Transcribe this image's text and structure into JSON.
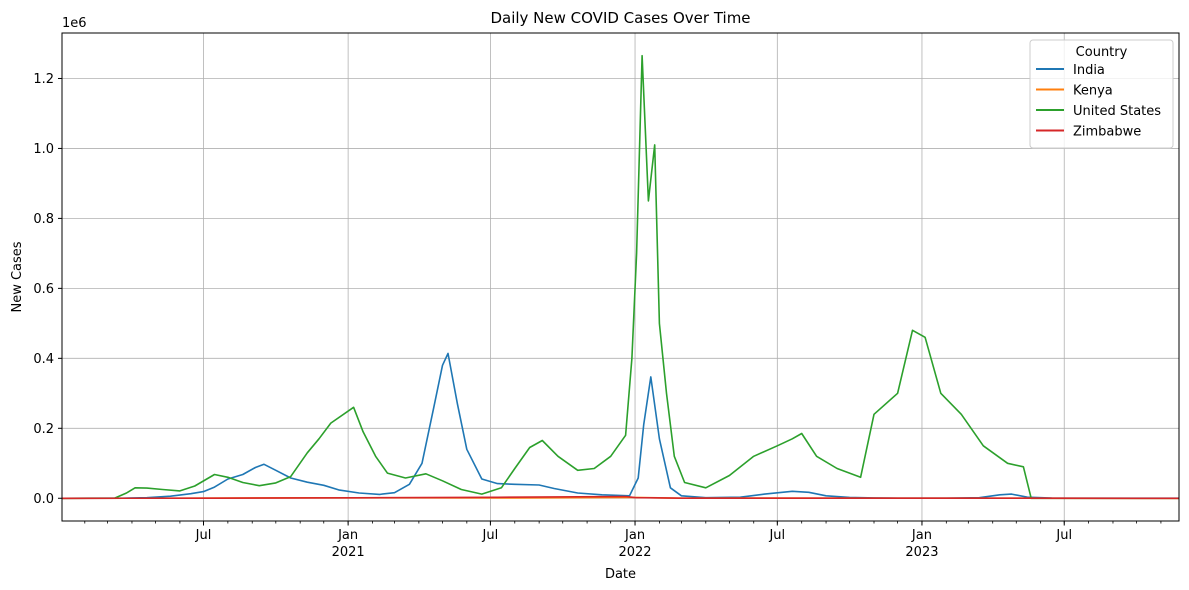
{
  "chart_data": {
    "type": "line",
    "title": "Daily New COVID Cases Over Time",
    "xlabel": "Date",
    "ylabel": "New Cases",
    "y_offset_label": "1e6",
    "xlim": [
      "2020-01-03",
      "2023-11-24"
    ],
    "ylim": [
      -65000,
      1330000
    ],
    "grid": true,
    "legend": {
      "title": "Country",
      "placement": "top-right"
    },
    "x_ticks": [
      {
        "date": "2020-07-01",
        "label": "Jul",
        "sub": ""
      },
      {
        "date": "2021-01-01",
        "label": "Jan",
        "sub": "2021"
      },
      {
        "date": "2021-07-01",
        "label": "Jul",
        "sub": ""
      },
      {
        "date": "2022-01-01",
        "label": "Jan",
        "sub": "2022"
      },
      {
        "date": "2022-07-01",
        "label": "Jul",
        "sub": ""
      },
      {
        "date": "2023-01-01",
        "label": "Jan",
        "sub": "2023"
      },
      {
        "date": "2023-07-01",
        "label": "Jul",
        "sub": ""
      }
    ],
    "y_ticks": [
      {
        "value": 0,
        "label": "0.0"
      },
      {
        "value": 200000,
        "label": "0.2"
      },
      {
        "value": 400000,
        "label": "0.4"
      },
      {
        "value": 600000,
        "label": "0.6"
      },
      {
        "value": 800000,
        "label": "0.8"
      },
      {
        "value": 1000000,
        "label": "1.0"
      },
      {
        "value": 1200000,
        "label": "1.2"
      }
    ],
    "series": [
      {
        "name": "India",
        "color": "#1f77b4",
        "points": [
          [
            "2020-01-03",
            0
          ],
          [
            "2020-03-20",
            100
          ],
          [
            "2020-04-20",
            1500
          ],
          [
            "2020-05-20",
            6000
          ],
          [
            "2020-06-15",
            13000
          ],
          [
            "2020-07-01",
            19000
          ],
          [
            "2020-07-15",
            32000
          ],
          [
            "2020-08-01",
            55000
          ],
          [
            "2020-08-20",
            68000
          ],
          [
            "2020-09-05",
            88000
          ],
          [
            "2020-09-16",
            97000
          ],
          [
            "2020-10-01",
            80000
          ],
          [
            "2020-10-20",
            58000
          ],
          [
            "2020-11-10",
            46000
          ],
          [
            "2020-12-01",
            37000
          ],
          [
            "2020-12-20",
            24000
          ],
          [
            "2021-01-15",
            15000
          ],
          [
            "2021-02-10",
            11000
          ],
          [
            "2021-03-01",
            16000
          ],
          [
            "2021-03-20",
            40000
          ],
          [
            "2021-04-05",
            100000
          ],
          [
            "2021-04-20",
            260000
          ],
          [
            "2021-05-01",
            380000
          ],
          [
            "2021-05-08",
            414000
          ],
          [
            "2021-05-20",
            270000
          ],
          [
            "2021-06-01",
            140000
          ],
          [
            "2021-06-20",
            55000
          ],
          [
            "2021-07-10",
            42000
          ],
          [
            "2021-08-01",
            40000
          ],
          [
            "2021-09-01",
            38000
          ],
          [
            "2021-09-20",
            28000
          ],
          [
            "2021-10-20",
            15000
          ],
          [
            "2021-11-20",
            10000
          ],
          [
            "2021-12-25",
            7000
          ],
          [
            "2022-01-05",
            58000
          ],
          [
            "2022-01-12",
            210000
          ],
          [
            "2022-01-21",
            347000
          ],
          [
            "2022-02-01",
            170000
          ],
          [
            "2022-02-15",
            30000
          ],
          [
            "2022-03-01",
            7000
          ],
          [
            "2022-04-01",
            1500
          ],
          [
            "2022-05-15",
            3000
          ],
          [
            "2022-06-15",
            12000
          ],
          [
            "2022-07-20",
            20000
          ],
          [
            "2022-08-10",
            17000
          ],
          [
            "2022-09-01",
            7000
          ],
          [
            "2022-10-01",
            2500
          ],
          [
            "2022-11-01",
            1000
          ],
          [
            "2022-12-01",
            300
          ],
          [
            "2023-02-01",
            200
          ],
          [
            "2023-03-15",
            1500
          ],
          [
            "2023-04-10",
            10000
          ],
          [
            "2023-04-25",
            12000
          ],
          [
            "2023-05-15",
            3000
          ],
          [
            "2023-06-15",
            500
          ],
          [
            "2023-08-01",
            100
          ],
          [
            "2023-11-24",
            50
          ]
        ]
      },
      {
        "name": "Kenya",
        "color": "#ff7f0e",
        "points": [
          [
            "2020-01-03",
            0
          ],
          [
            "2020-06-01",
            300
          ],
          [
            "2020-11-15",
            1200
          ],
          [
            "2021-03-25",
            1300
          ],
          [
            "2021-08-01",
            1100
          ],
          [
            "2021-12-25",
            2500
          ],
          [
            "2022-03-01",
            100
          ],
          [
            "2022-06-15",
            500
          ],
          [
            "2023-01-01",
            50
          ],
          [
            "2023-11-24",
            0
          ]
        ]
      },
      {
        "name": "United States",
        "color": "#2ca02c",
        "points": [
          [
            "2020-01-03",
            0
          ],
          [
            "2020-03-10",
            500
          ],
          [
            "2020-03-25",
            15000
          ],
          [
            "2020-04-05",
            30000
          ],
          [
            "2020-04-20",
            29000
          ],
          [
            "2020-05-10",
            25000
          ],
          [
            "2020-06-01",
            21000
          ],
          [
            "2020-06-20",
            35000
          ],
          [
            "2020-07-15",
            68000
          ],
          [
            "2020-08-01",
            60000
          ],
          [
            "2020-08-20",
            45000
          ],
          [
            "2020-09-10",
            36000
          ],
          [
            "2020-10-01",
            44000
          ],
          [
            "2020-10-20",
            62000
          ],
          [
            "2020-11-10",
            130000
          ],
          [
            "2020-11-25",
            170000
          ],
          [
            "2020-12-10",
            215000
          ],
          [
            "2021-01-08",
            260000
          ],
          [
            "2021-01-20",
            190000
          ],
          [
            "2021-02-05",
            120000
          ],
          [
            "2021-02-20",
            72000
          ],
          [
            "2021-03-15",
            58000
          ],
          [
            "2021-04-10",
            70000
          ],
          [
            "2021-05-01",
            50000
          ],
          [
            "2021-05-25",
            25000
          ],
          [
            "2021-06-20",
            12000
          ],
          [
            "2021-07-15",
            30000
          ],
          [
            "2021-08-01",
            85000
          ],
          [
            "2021-08-20",
            145000
          ],
          [
            "2021-09-05",
            165000
          ],
          [
            "2021-09-25",
            120000
          ],
          [
            "2021-10-20",
            80000
          ],
          [
            "2021-11-10",
            85000
          ],
          [
            "2021-12-01",
            120000
          ],
          [
            "2021-12-20",
            180000
          ],
          [
            "2021-12-28",
            400000
          ],
          [
            "2022-01-03",
            700000
          ],
          [
            "2022-01-10",
            1265000
          ],
          [
            "2022-01-18",
            850000
          ],
          [
            "2022-01-26",
            1010000
          ],
          [
            "2022-02-01",
            500000
          ],
          [
            "2022-02-10",
            300000
          ],
          [
            "2022-02-20",
            120000
          ],
          [
            "2022-03-05",
            45000
          ],
          [
            "2022-04-01",
            30000
          ],
          [
            "2022-05-01",
            65000
          ],
          [
            "2022-06-01",
            120000
          ],
          [
            "2022-07-01",
            150000
          ],
          [
            "2022-07-20",
            170000
          ],
          [
            "2022-08-01",
            185000
          ],
          [
            "2022-08-20",
            120000
          ],
          [
            "2022-09-15",
            85000
          ],
          [
            "2022-10-15",
            60000
          ],
          [
            "2022-11-01",
            240000
          ],
          [
            "2022-12-01",
            300000
          ],
          [
            "2022-12-20",
            480000
          ],
          [
            "2023-01-05",
            460000
          ],
          [
            "2023-01-25",
            300000
          ],
          [
            "2023-02-20",
            240000
          ],
          [
            "2023-03-20",
            150000
          ],
          [
            "2023-04-20",
            100000
          ],
          [
            "2023-05-10",
            90000
          ],
          [
            "2023-05-20",
            0
          ],
          [
            "2023-11-24",
            0
          ]
        ]
      },
      {
        "name": "Zimbabwe",
        "color": "#d62728",
        "points": [
          [
            "2020-01-03",
            0
          ],
          [
            "2020-07-20",
            150
          ],
          [
            "2021-01-10",
            1300
          ],
          [
            "2021-07-10",
            2800
          ],
          [
            "2021-12-20",
            5000
          ],
          [
            "2022-01-01",
            2000
          ],
          [
            "2022-03-01",
            300
          ],
          [
            "2022-07-01",
            200
          ],
          [
            "2023-01-01",
            100
          ],
          [
            "2023-11-24",
            0
          ]
        ]
      }
    ]
  }
}
